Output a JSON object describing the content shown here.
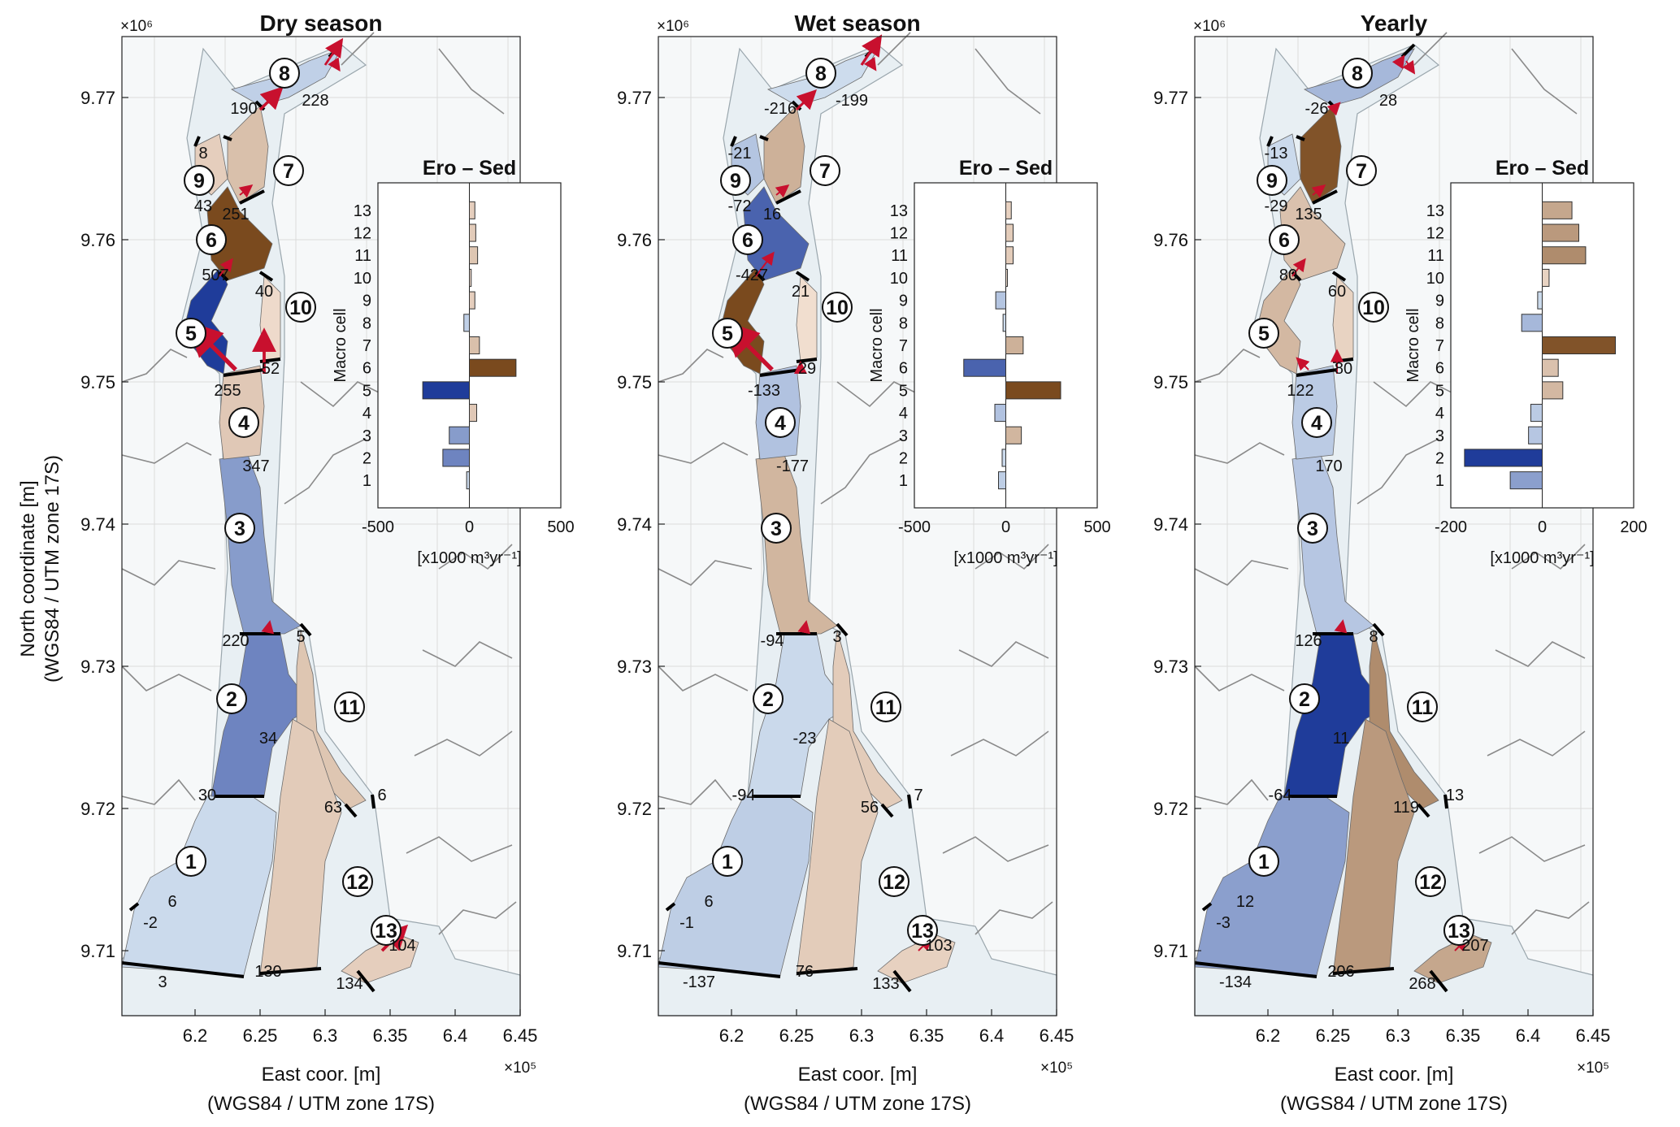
{
  "figure": {
    "y_axis_label_line1": "North coordinate [m]",
    "y_axis_label_line2": "(WGS84 / UTM zone 17S)",
    "x_axis_label_line1": "East coor. [m]",
    "x_axis_label_line2": "(WGS84 / UTM zone 17S)",
    "y_exponent": "×10⁶",
    "x_exponent": "×10⁵",
    "x_ticks": [
      "6.2",
      "6.25",
      "6.3",
      "6.35",
      "6.4",
      "6.45"
    ],
    "y_ticks": [
      "9.77",
      "9.76",
      "9.75",
      "9.74",
      "9.73",
      "9.72",
      "9.71"
    ],
    "cell_numbers": [
      "1",
      "2",
      "3",
      "4",
      "5",
      "6",
      "7",
      "8",
      "9",
      "10",
      "11",
      "12",
      "13"
    ]
  },
  "colors": {
    "water": "#e8eff3",
    "land_line": "#8a8a8a",
    "arrow": "#c8102e",
    "erosion_strong": "#1f3c9a",
    "sedimentation_strong": "#7a4a1e"
  },
  "chart_data": [
    {
      "type": "bar",
      "panel": "dry",
      "title": "Dry season",
      "bar_title": "Ero – Sed",
      "xlabel": "[x1000 m³yr⁻¹]",
      "ylabel": "Macro cell",
      "categories": [
        "1",
        "2",
        "3",
        "4",
        "5",
        "6",
        "7",
        "8",
        "9",
        "10",
        "11",
        "12",
        "13"
      ],
      "values": [
        -15,
        -145,
        -110,
        40,
        -255,
        255,
        55,
        -30,
        30,
        10,
        45,
        35,
        30
      ],
      "xlim": [
        -500,
        500
      ],
      "x_ticks": [
        "-500",
        "0",
        "500"
      ],
      "map_fluxes": [
        "190",
        "228",
        "8",
        "43",
        "251",
        "507",
        "40",
        "52",
        "255",
        "347",
        "220",
        "5",
        "34",
        "30",
        "63",
        "6",
        "6",
        "-2",
        "3",
        "130",
        "134",
        "104"
      ]
    },
    {
      "type": "bar",
      "panel": "wet",
      "title": "Wet season",
      "bar_title": "Ero – Sed",
      "xlabel": "[x1000 m³yr⁻¹]",
      "ylabel": "Macro cell",
      "categories": [
        "1",
        "2",
        "3",
        "4",
        "5",
        "6",
        "7",
        "8",
        "9",
        "10",
        "11",
        "12",
        "13"
      ],
      "values": [
        -40,
        -20,
        85,
        -60,
        300,
        -230,
        95,
        -15,
        -55,
        5,
        40,
        40,
        30
      ],
      "xlim": [
        -500,
        500
      ],
      "x_ticks": [
        "-500",
        "0",
        "500"
      ],
      "map_fluxes": [
        "-216",
        "-199",
        "-21",
        "-72",
        "16",
        "-427",
        "21",
        "29",
        "-133",
        "-177",
        "-94",
        "3",
        "-23",
        "-94",
        "56",
        "7",
        "6",
        "-1",
        "-137",
        "76",
        "133",
        "103"
      ]
    },
    {
      "type": "bar",
      "panel": "yearly",
      "title": "Yearly",
      "bar_title": "Ero – Sed",
      "xlabel": "[x1000 m³yr⁻¹]",
      "ylabel": "Macro cell",
      "categories": [
        "1",
        "2",
        "3",
        "4",
        "5",
        "6",
        "7",
        "8",
        "9",
        "10",
        "11",
        "12",
        "13"
      ],
      "values": [
        -70,
        -170,
        -30,
        -25,
        45,
        35,
        160,
        -45,
        -10,
        15,
        95,
        80,
        65
      ],
      "xlim": [
        -200,
        200
      ],
      "x_ticks": [
        "-200",
        "0",
        "200"
      ],
      "map_fluxes": [
        "-26",
        "28",
        "-13",
        "-29",
        "135",
        "80",
        "60",
        "80",
        "122",
        "170",
        "126",
        "8",
        "11",
        "-64",
        "119",
        "13",
        "12",
        "-3",
        "-134",
        "206",
        "268",
        "207"
      ]
    }
  ]
}
